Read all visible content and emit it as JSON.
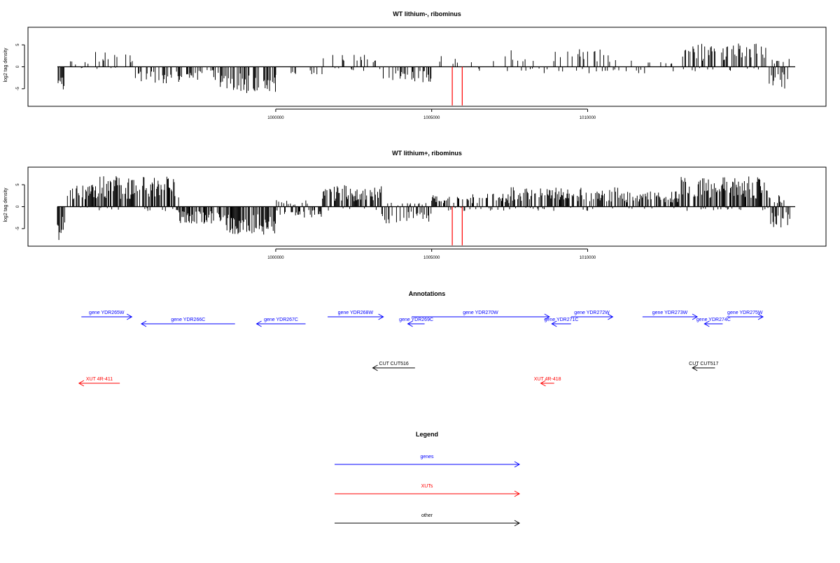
{
  "colors": {
    "genes": "#0000ff",
    "xuts": "#ff0000",
    "other": "#000000",
    "marker": "#ff0000",
    "bars": "#000000"
  },
  "chart_data": [
    {
      "type": "bar",
      "title": "WT lithium-, ribominus",
      "ylabel": "log2 tag density",
      "xlim": [
        993000,
        1016700
      ],
      "ylim": [
        -9,
        9
      ],
      "xticks": [
        1000000,
        1005000,
        1010000
      ],
      "yticks": [
        5,
        0,
        -5
      ],
      "marker_positions": [
        1005660,
        1005980
      ],
      "profile": [
        {
          "from": 993000,
          "to": 993250,
          "up": 0,
          "down": 7,
          "density": 0.6
        },
        {
          "from": 993250,
          "to": 994200,
          "up": 1.5,
          "down": 0.5,
          "density": 0.15
        },
        {
          "from": 994200,
          "to": 995500,
          "up": 3.5,
          "down": 0.5,
          "density": 0.3
        },
        {
          "from": 995500,
          "to": 997000,
          "up": 0,
          "down": 4,
          "density": 0.35
        },
        {
          "from": 997000,
          "to": 998200,
          "up": 0,
          "down": 3,
          "density": 0.3
        },
        {
          "from": 998200,
          "to": 1000000,
          "up": 0,
          "down": 6,
          "density": 0.45
        },
        {
          "from": 1000000,
          "to": 1001500,
          "up": 0.2,
          "down": 2.2,
          "density": 0.3
        },
        {
          "from": 1001500,
          "to": 1003400,
          "up": 3,
          "down": 1,
          "density": 0.3
        },
        {
          "from": 1003400,
          "to": 1005000,
          "up": 0,
          "down": 3.5,
          "density": 0.3
        },
        {
          "from": 1005000,
          "to": 1007500,
          "up": 2.5,
          "down": 1,
          "density": 0.12
        },
        {
          "from": 1007500,
          "to": 1011000,
          "up": 4,
          "down": 1.5,
          "density": 0.3
        },
        {
          "from": 1011000,
          "to": 1013000,
          "up": 1.5,
          "down": 1.5,
          "density": 0.1
        },
        {
          "from": 1013000,
          "to": 1015800,
          "up": 5.5,
          "down": 1,
          "density": 0.5
        },
        {
          "from": 1015800,
          "to": 1016500,
          "up": 2,
          "down": 5,
          "density": 0.5
        }
      ]
    },
    {
      "type": "bar",
      "title": "WT lithium+, ribominus",
      "ylabel": "log2 tag density",
      "xlim": [
        993000,
        1016700
      ],
      "ylim": [
        -9,
        9
      ],
      "xticks": [
        1000000,
        1005000,
        1010000
      ],
      "yticks": [
        5,
        0,
        -5
      ],
      "marker_positions": [
        1005660,
        1005980
      ],
      "profile": [
        {
          "from": 993000,
          "to": 993250,
          "up": 0,
          "down": 8,
          "density": 0.8
        },
        {
          "from": 993250,
          "to": 994200,
          "up": 5,
          "down": 0.5,
          "density": 0.6
        },
        {
          "from": 994200,
          "to": 996900,
          "up": 7,
          "down": 1,
          "density": 0.85
        },
        {
          "from": 996900,
          "to": 998200,
          "up": 0,
          "down": 4,
          "density": 0.7
        },
        {
          "from": 998200,
          "to": 1000000,
          "up": 0,
          "down": 6.5,
          "density": 0.8
        },
        {
          "from": 1000000,
          "to": 1001500,
          "up": 1.5,
          "down": 2.5,
          "density": 0.6
        },
        {
          "from": 1001500,
          "to": 1003400,
          "up": 5,
          "down": 1,
          "density": 0.7
        },
        {
          "from": 1003400,
          "to": 1005000,
          "up": 1,
          "down": 4,
          "density": 0.55
        },
        {
          "from": 1005000,
          "to": 1007500,
          "up": 3,
          "down": 1,
          "density": 0.55
        },
        {
          "from": 1007500,
          "to": 1011000,
          "up": 4.5,
          "down": 1,
          "density": 0.7
        },
        {
          "from": 1011000,
          "to": 1013000,
          "up": 3.5,
          "down": 0.5,
          "density": 0.65
        },
        {
          "from": 1013000,
          "to": 1015800,
          "up": 7,
          "down": 1,
          "density": 0.85
        },
        {
          "from": 1015800,
          "to": 1016500,
          "up": 3,
          "down": 5,
          "density": 0.8
        }
      ]
    }
  ],
  "annotations": {
    "title": "Annotations",
    "items": [
      {
        "label": "gene YDR265W",
        "kind": "genes",
        "strand": "+",
        "start": 993500,
        "end": 994550,
        "row": 1
      },
      {
        "label": "gene YDR266C",
        "kind": "genes",
        "strand": "-",
        "start": 994750,
        "end": 996700,
        "row": 2
      },
      {
        "label": "gene YDR267C",
        "kind": "genes",
        "strand": "-",
        "start": 997150,
        "end": 998170,
        "row": 2
      },
      {
        "label": "gene YDR268W",
        "kind": "genes",
        "strand": "+",
        "start": 998630,
        "end": 999790,
        "row": 1
      },
      {
        "label": "gene YDR269C",
        "kind": "genes",
        "strand": "-",
        "start": 1000300,
        "end": 1000650,
        "row": 2
      },
      {
        "label": "gene YDR270W",
        "kind": "genes",
        "strand": "+",
        "start": 1000380,
        "end": 1003250,
        "row": 1
      },
      {
        "label": "gene YDR271C",
        "kind": "genes",
        "strand": "-",
        "start": 1003300,
        "end": 1003700,
        "row": 2
      },
      {
        "label": "gene YDR272W",
        "kind": "genes",
        "strand": "+",
        "start": 1003700,
        "end": 1004570,
        "row": 1
      },
      {
        "label": "gene YDR273W",
        "kind": "genes",
        "strand": "+",
        "start": 1005190,
        "end": 1006330,
        "row": 1
      },
      {
        "label": "gene YDR274C",
        "kind": "genes",
        "strand": "-",
        "start": 1006480,
        "end": 1006860,
        "row": 2
      },
      {
        "label": "gene YDR275W",
        "kind": "genes",
        "strand": "+",
        "start": 1006950,
        "end": 1007700,
        "row": 1
      },
      {
        "label": "CUT CUT516",
        "kind": "other",
        "strand": "-",
        "start": 999570,
        "end": 1000450,
        "row": 3
      },
      {
        "label": "CUT CUT517",
        "kind": "other",
        "strand": "-",
        "start": 1006230,
        "end": 1006700,
        "row": 3
      },
      {
        "label": "XUT 4R-411",
        "kind": "xuts",
        "strand": "-",
        "start": 993450,
        "end": 994300,
        "row": 4
      },
      {
        "label": "XUT 4R-418",
        "kind": "xuts",
        "strand": "-",
        "start": 1003070,
        "end": 1003350,
        "row": 4
      }
    ]
  },
  "legend": {
    "title": "Legend",
    "items": [
      {
        "label": "genes",
        "kind": "genes"
      },
      {
        "label": "XUTs",
        "kind": "xuts"
      },
      {
        "label": "other",
        "kind": "other"
      }
    ]
  }
}
